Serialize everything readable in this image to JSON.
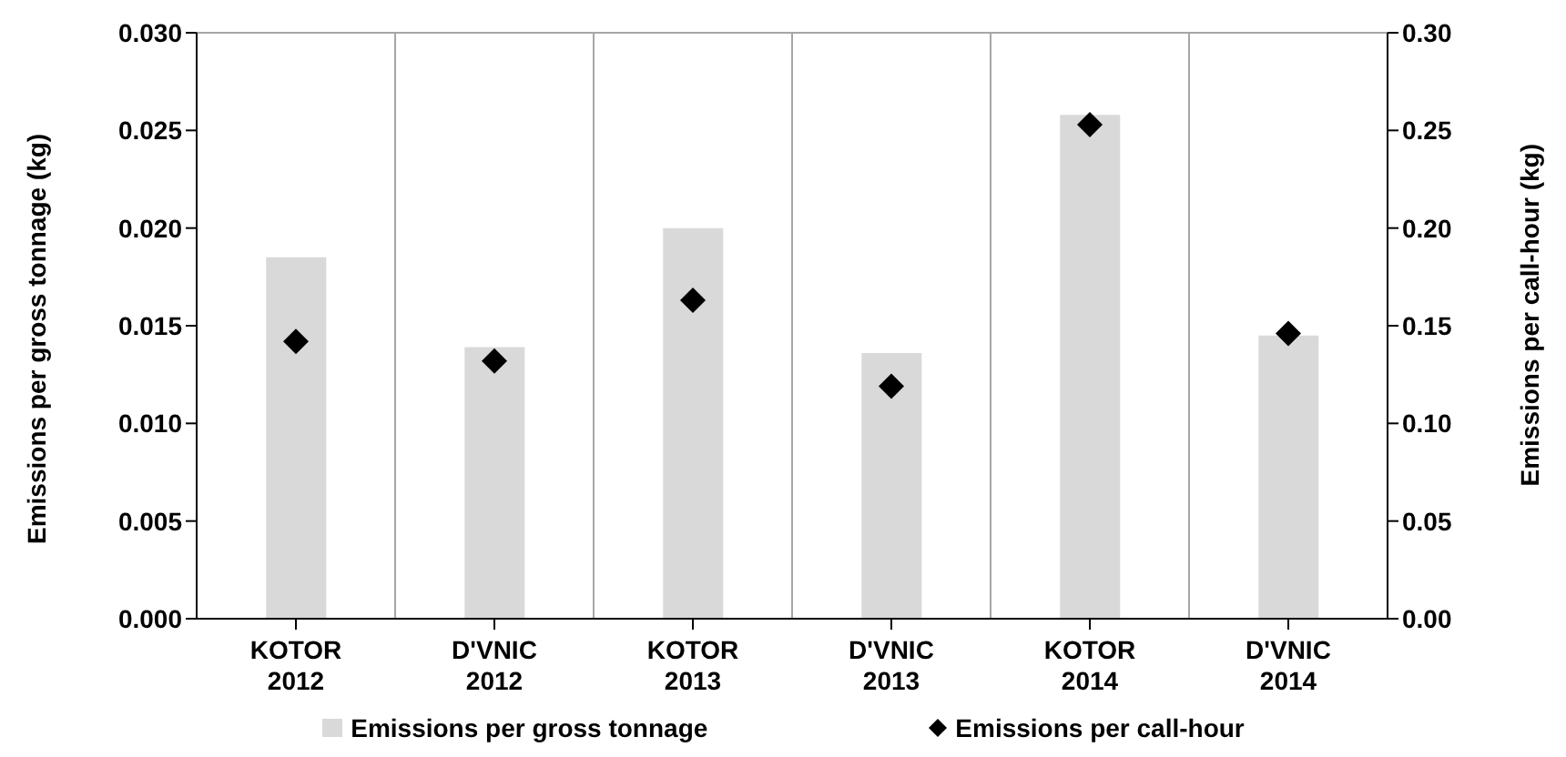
{
  "chart_data": {
    "type": "bar",
    "categories": [
      "KOTOR 2012",
      "D'VNIC 2012",
      "KOTOR 2013",
      "D'VNIC 2013",
      "KOTOR 2014",
      "D'VNIC 2014"
    ],
    "series": [
      {
        "name": "Emissions per gross tonnage",
        "color": "#d9d9d9",
        "values": [
          0.0185,
          0.0139,
          0.02,
          0.0136,
          0.0258,
          0.0145
        ]
      },
      {
        "name": "Emissions per call-hour",
        "type": "scatter",
        "axis": "y2",
        "color": "#000000",
        "marker": "diamond",
        "values": [
          0.142,
          0.132,
          0.163,
          0.119,
          0.253,
          0.146
        ]
      }
    ],
    "ylabel": "Emissions per gross tonnage (kg)",
    "y2label": "Emissions per call-hour (kg)",
    "ylim": [
      0,
      0.03
    ],
    "yticks": [
      {
        "value": 0,
        "label": "0.000"
      },
      {
        "value": 0.005,
        "label": "0.005"
      },
      {
        "value": 0.01,
        "label": "0.010"
      },
      {
        "value": 0.015,
        "label": "0.015"
      },
      {
        "value": 0.02,
        "label": "0.020"
      },
      {
        "value": 0.025,
        "label": "0.025"
      },
      {
        "value": 0.03,
        "label": "0.030"
      }
    ],
    "y2lim": [
      0,
      0.3
    ],
    "y2ticks": [
      {
        "value": 0,
        "label": "0.00"
      },
      {
        "value": 0.05,
        "label": "0.05"
      },
      {
        "value": 0.1,
        "label": "0.10"
      },
      {
        "value": 0.15,
        "label": "0.15"
      },
      {
        "value": 0.2,
        "label": "0.20"
      },
      {
        "value": 0.25,
        "label": "0.25"
      },
      {
        "value": 0.3,
        "label": "0.30"
      }
    ],
    "grid": true,
    "legend": "bottom"
  }
}
